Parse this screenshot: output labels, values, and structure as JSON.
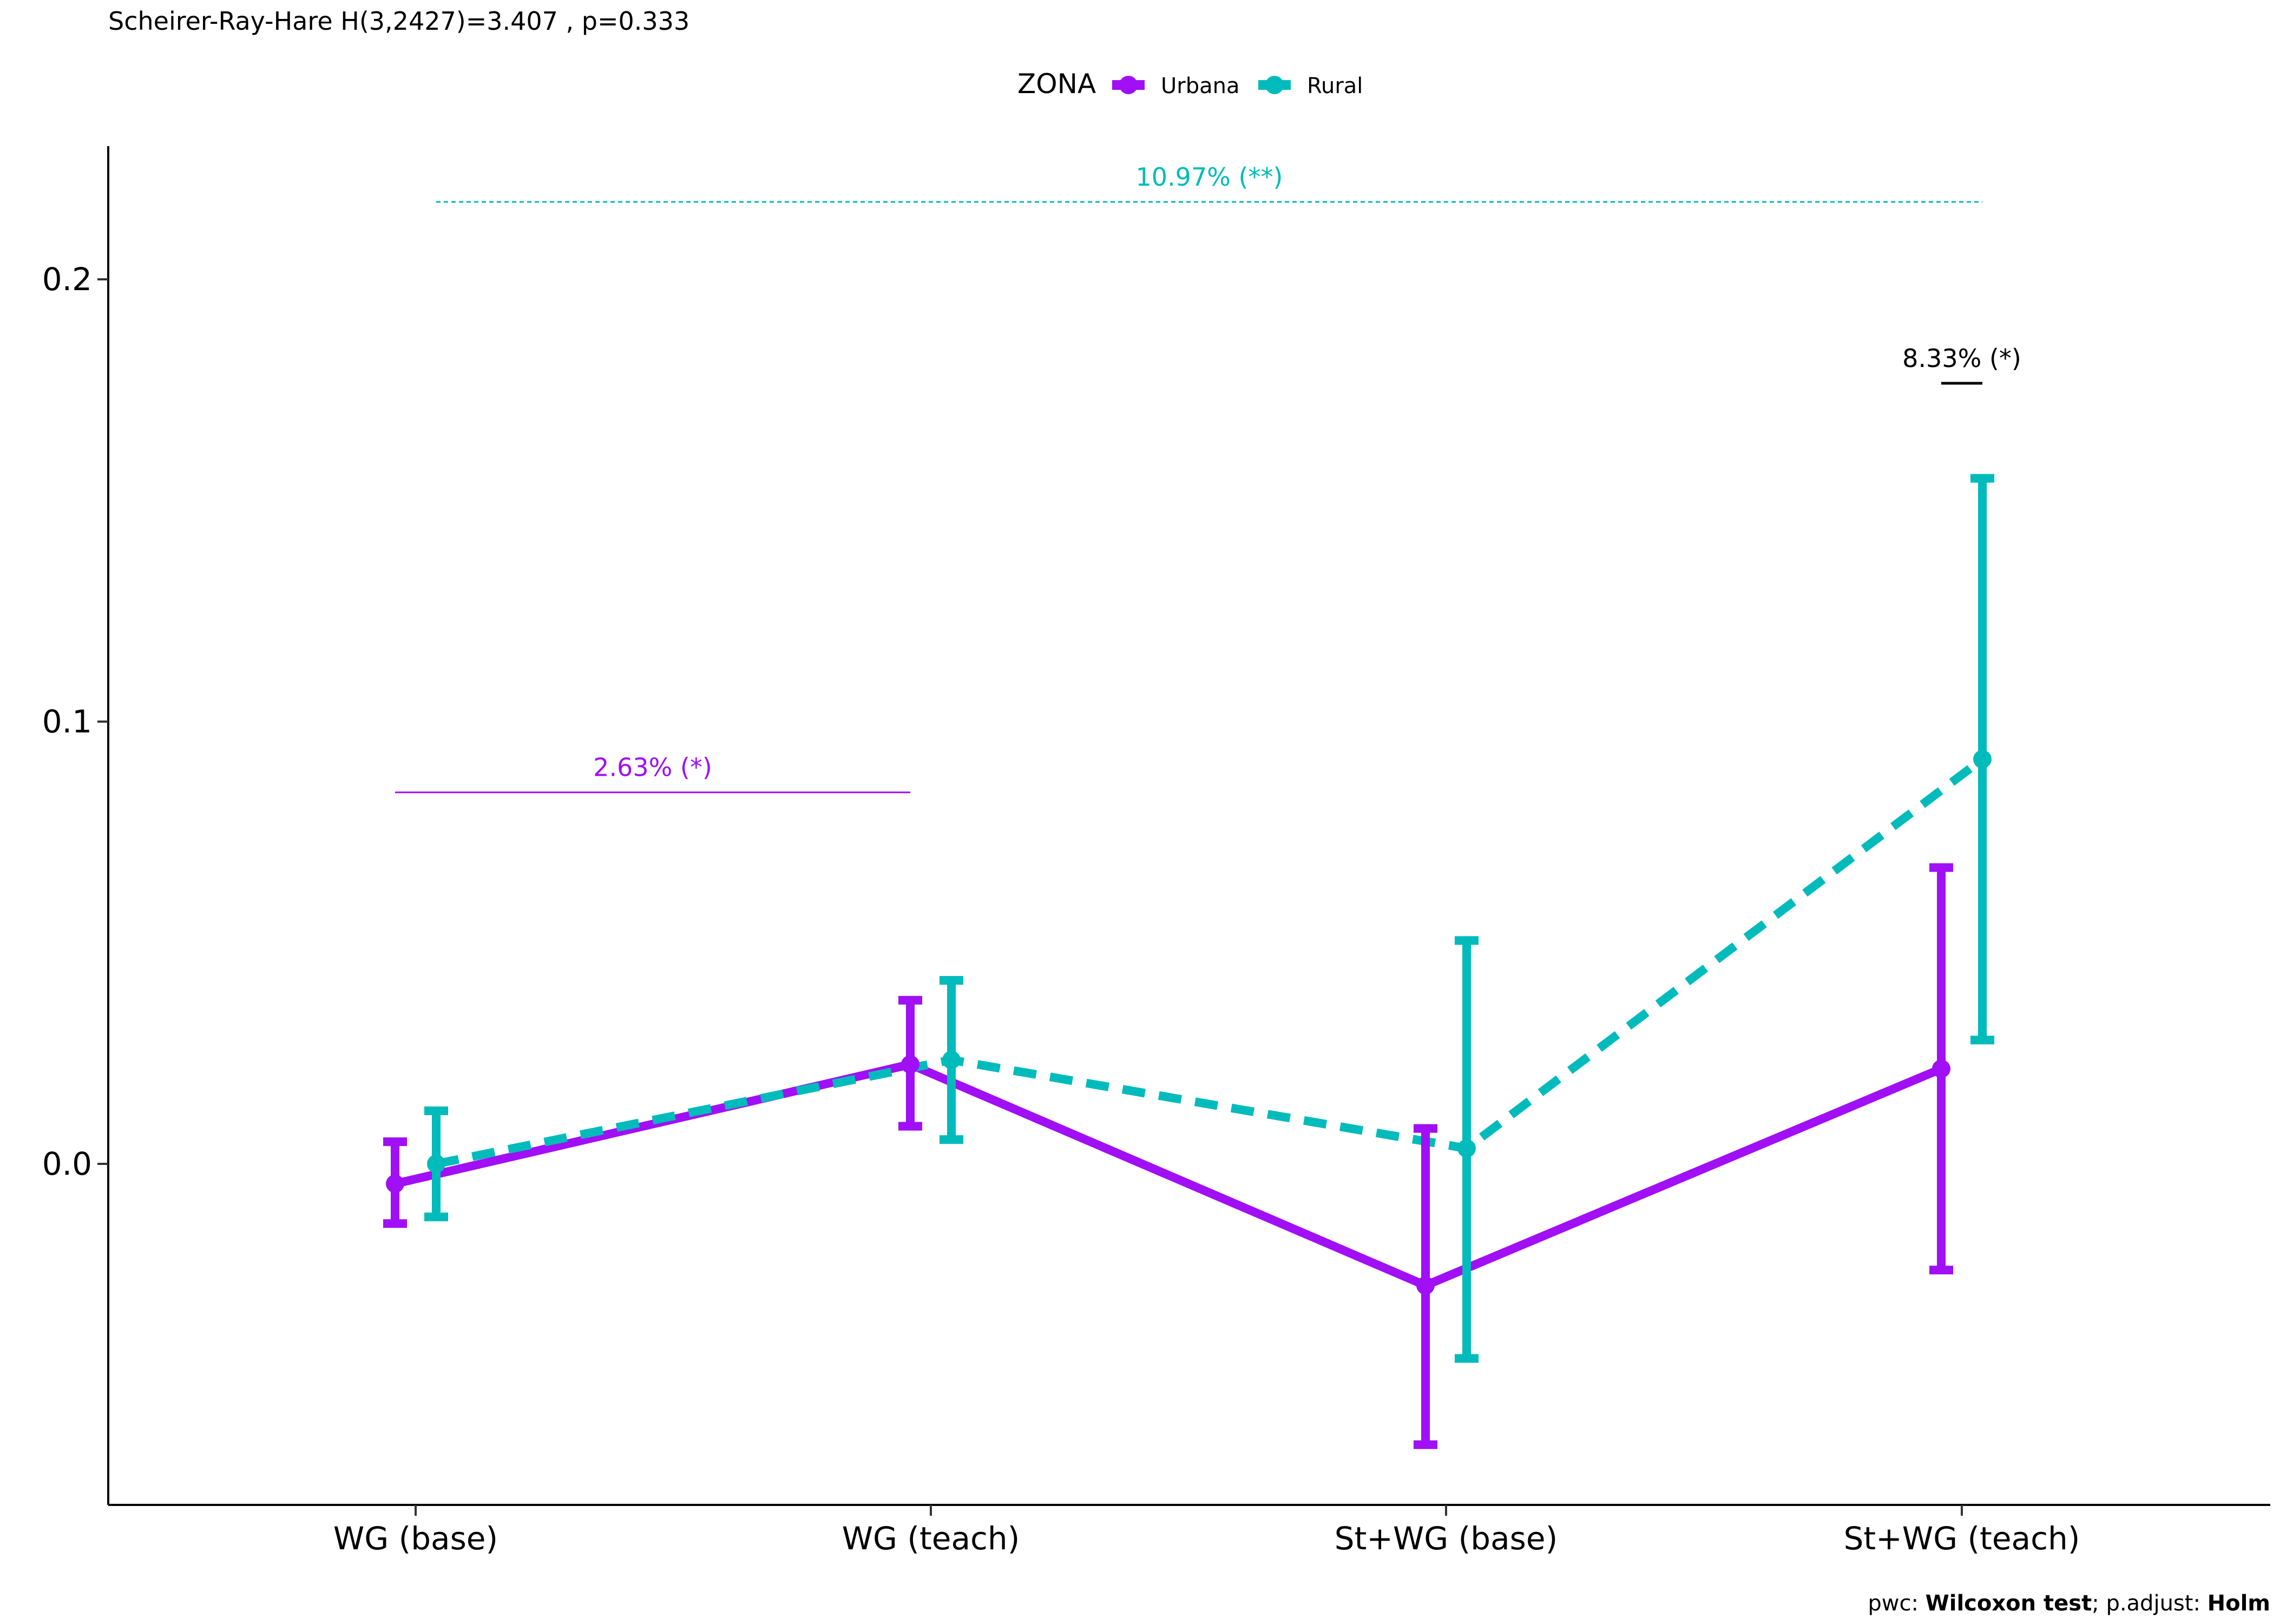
{
  "chart_data": {
    "type": "line",
    "title": "Scheirer-Ray-Hare H(3,2427)=3.407 , p=0.333",
    "xlabel": "",
    "ylabel": "",
    "categories": [
      "WG (base)",
      "WG (teach)",
      "St+WG (base)",
      "St+WG (teach)"
    ],
    "ylim": [
      -0.077,
      0.23
    ],
    "yticks": [
      0.0,
      0.1,
      0.2
    ],
    "ytick_labels": [
      "0.0",
      "0.1",
      "0.2"
    ],
    "grid": false,
    "legend": {
      "title": "ZONA",
      "placement": "top"
    },
    "series": [
      {
        "name": "Urbana",
        "color": "#a00ff5",
        "line_style": "solid",
        "values": [
          -0.0045,
          0.0225,
          -0.0275,
          0.0215
        ],
        "error_low": [
          -0.0135,
          0.0085,
          -0.0635,
          -0.024
        ],
        "error_high": [
          0.005,
          0.037,
          0.008,
          0.067
        ]
      },
      {
        "name": "Rural",
        "color": "#00bbbb",
        "line_style": "dashed",
        "values": [
          0.0,
          0.0235,
          0.0035,
          0.0915
        ],
        "error_low": [
          -0.012,
          0.0055,
          -0.044,
          0.028
        ],
        "error_high": [
          0.012,
          0.0415,
          0.0505,
          0.155
        ]
      }
    ],
    "annotations": [
      {
        "text": "10.97% (**)",
        "color": "#00bbbb",
        "y": 0.2175,
        "from_category": 0,
        "to_category": 3,
        "from_series": "Rural",
        "to_series": "Rural",
        "line_style": "dotted"
      },
      {
        "text": "2.63% (*)",
        "color": "#a00ff5",
        "y": 0.084,
        "from_category": 0,
        "to_category": 1,
        "from_series": "Urbana",
        "to_series": "Urbana",
        "line_style": "solid"
      },
      {
        "text": "8.33% (*)",
        "color": "#000000",
        "y": 0.1765,
        "from_category": 3,
        "to_category": 3,
        "from_series": "Urbana",
        "to_series": "Rural",
        "line_style": "solid"
      }
    ],
    "caption_parts": [
      {
        "text": "pwc: ",
        "bold": false
      },
      {
        "text": "Wilcoxon test",
        "bold": true
      },
      {
        "text": "; p.adjust: ",
        "bold": false
      },
      {
        "text": "Holm",
        "bold": true
      }
    ]
  }
}
